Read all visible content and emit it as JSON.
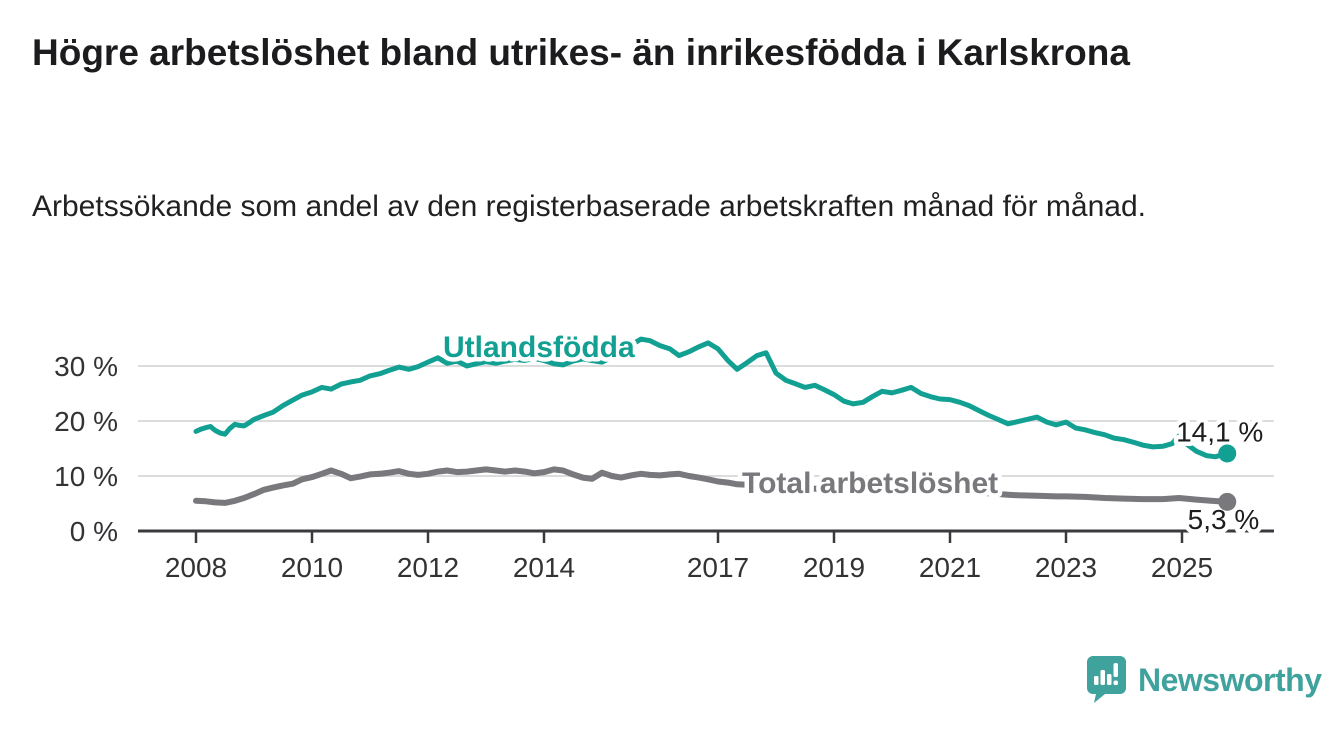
{
  "title": "Högre arbetslöshet bland utrikes- än inrikesfödda i Karlskrona",
  "subtitle": "Arbetssökande som andel av den registerbaserade arbetskraften månad för månad.",
  "chart_data": {
    "type": "line",
    "unit": "%",
    "grid": "horizontal",
    "x_axis": {
      "ticks": [
        2008,
        2010,
        2012,
        2014,
        2017,
        2019,
        2021,
        2023,
        2025
      ],
      "range": [
        2007.8,
        2026.3
      ]
    },
    "y_axis": {
      "ticks": [
        0,
        10,
        20,
        30
      ],
      "tick_labels": [
        "0 %",
        "10 %",
        "20 %",
        "30 %"
      ],
      "range": [
        0,
        37
      ]
    },
    "series": [
      {
        "name": "Utlandsfödda",
        "color": "#12A093",
        "end_label": "14,1 %",
        "points": [
          [
            2008.0,
            18.1
          ],
          [
            2008.08,
            18.5
          ],
          [
            2008.17,
            18.8
          ],
          [
            2008.25,
            19.0
          ],
          [
            2008.33,
            18.3
          ],
          [
            2008.42,
            17.8
          ],
          [
            2008.5,
            17.6
          ],
          [
            2008.58,
            18.6
          ],
          [
            2008.67,
            19.4
          ],
          [
            2008.75,
            19.2
          ],
          [
            2008.83,
            19.1
          ],
          [
            2008.92,
            19.7
          ],
          [
            2009.0,
            20.3
          ],
          [
            2009.17,
            21.0
          ],
          [
            2009.33,
            21.6
          ],
          [
            2009.5,
            22.8
          ],
          [
            2009.67,
            23.8
          ],
          [
            2009.83,
            24.7
          ],
          [
            2010.0,
            25.3
          ],
          [
            2010.17,
            26.1
          ],
          [
            2010.33,
            25.8
          ],
          [
            2010.5,
            26.7
          ],
          [
            2010.67,
            27.1
          ],
          [
            2010.83,
            27.4
          ],
          [
            2011.0,
            28.2
          ],
          [
            2011.17,
            28.6
          ],
          [
            2011.33,
            29.2
          ],
          [
            2011.5,
            29.8
          ],
          [
            2011.67,
            29.4
          ],
          [
            2011.83,
            29.9
          ],
          [
            2012.0,
            30.7
          ],
          [
            2012.17,
            31.5
          ],
          [
            2012.33,
            30.5
          ],
          [
            2012.5,
            30.9
          ],
          [
            2012.67,
            30.0
          ],
          [
            2012.83,
            30.4
          ],
          [
            2013.0,
            30.8
          ],
          [
            2013.17,
            30.5
          ],
          [
            2013.33,
            30.9
          ],
          [
            2013.5,
            31.2
          ],
          [
            2013.67,
            31.0
          ],
          [
            2013.83,
            31.4
          ],
          [
            2014.0,
            31.0
          ],
          [
            2014.17,
            30.4
          ],
          [
            2014.33,
            30.2
          ],
          [
            2014.5,
            30.9
          ],
          [
            2014.67,
            31.3
          ],
          [
            2014.83,
            31.0
          ],
          [
            2015.0,
            30.7
          ],
          [
            2015.17,
            31.6
          ],
          [
            2015.33,
            32.6
          ],
          [
            2015.5,
            33.8
          ],
          [
            2015.67,
            34.9
          ],
          [
            2015.83,
            34.6
          ],
          [
            2016.0,
            33.7
          ],
          [
            2016.17,
            33.1
          ],
          [
            2016.33,
            31.9
          ],
          [
            2016.5,
            32.6
          ],
          [
            2016.67,
            33.5
          ],
          [
            2016.83,
            34.2
          ],
          [
            2017.0,
            33.1
          ],
          [
            2017.17,
            31.0
          ],
          [
            2017.33,
            29.4
          ],
          [
            2017.5,
            30.6
          ],
          [
            2017.67,
            31.9
          ],
          [
            2017.83,
            32.4
          ],
          [
            2018.0,
            28.7
          ],
          [
            2018.17,
            27.4
          ],
          [
            2018.33,
            26.8
          ],
          [
            2018.5,
            26.1
          ],
          [
            2018.67,
            26.5
          ],
          [
            2018.83,
            25.7
          ],
          [
            2019.0,
            24.8
          ],
          [
            2019.17,
            23.6
          ],
          [
            2019.33,
            23.1
          ],
          [
            2019.5,
            23.4
          ],
          [
            2019.67,
            24.5
          ],
          [
            2019.83,
            25.4
          ],
          [
            2020.0,
            25.1
          ],
          [
            2020.17,
            25.6
          ],
          [
            2020.33,
            26.1
          ],
          [
            2020.5,
            25.0
          ],
          [
            2020.67,
            24.4
          ],
          [
            2020.83,
            24.0
          ],
          [
            2021.0,
            23.9
          ],
          [
            2021.17,
            23.4
          ],
          [
            2021.33,
            22.8
          ],
          [
            2021.5,
            21.9
          ],
          [
            2021.67,
            21.0
          ],
          [
            2021.83,
            20.3
          ],
          [
            2022.0,
            19.5
          ],
          [
            2022.17,
            19.9
          ],
          [
            2022.33,
            20.3
          ],
          [
            2022.5,
            20.7
          ],
          [
            2022.67,
            19.8
          ],
          [
            2022.83,
            19.3
          ],
          [
            2023.0,
            19.8
          ],
          [
            2023.17,
            18.7
          ],
          [
            2023.33,
            18.4
          ],
          [
            2023.5,
            17.9
          ],
          [
            2023.67,
            17.5
          ],
          [
            2023.83,
            16.9
          ],
          [
            2024.0,
            16.6
          ],
          [
            2024.17,
            16.1
          ],
          [
            2024.33,
            15.6
          ],
          [
            2024.5,
            15.3
          ],
          [
            2024.67,
            15.4
          ],
          [
            2024.83,
            15.9
          ],
          [
            2024.95,
            17.3
          ],
          [
            2025.08,
            15.8
          ],
          [
            2025.25,
            14.5
          ],
          [
            2025.42,
            13.7
          ],
          [
            2025.58,
            13.5
          ],
          [
            2025.67,
            13.8
          ],
          [
            2025.78,
            14.1
          ]
        ]
      },
      {
        "name": "Total arbetslöshet",
        "color": "#78787D",
        "end_label": "5,3 %",
        "points": [
          [
            2008.0,
            5.5
          ],
          [
            2008.17,
            5.4
          ],
          [
            2008.33,
            5.2
          ],
          [
            2008.5,
            5.1
          ],
          [
            2008.67,
            5.5
          ],
          [
            2008.83,
            6.0
          ],
          [
            2009.0,
            6.7
          ],
          [
            2009.17,
            7.5
          ],
          [
            2009.33,
            7.9
          ],
          [
            2009.5,
            8.3
          ],
          [
            2009.67,
            8.6
          ],
          [
            2009.83,
            9.4
          ],
          [
            2010.0,
            9.8
          ],
          [
            2010.17,
            10.4
          ],
          [
            2010.33,
            11.0
          ],
          [
            2010.5,
            10.4
          ],
          [
            2010.67,
            9.6
          ],
          [
            2010.83,
            9.9
          ],
          [
            2011.0,
            10.3
          ],
          [
            2011.17,
            10.4
          ],
          [
            2011.33,
            10.6
          ],
          [
            2011.5,
            10.9
          ],
          [
            2011.67,
            10.4
          ],
          [
            2011.83,
            10.2
          ],
          [
            2012.0,
            10.4
          ],
          [
            2012.17,
            10.8
          ],
          [
            2012.33,
            11.0
          ],
          [
            2012.5,
            10.7
          ],
          [
            2012.67,
            10.8
          ],
          [
            2012.83,
            11.0
          ],
          [
            2013.0,
            11.2
          ],
          [
            2013.17,
            11.0
          ],
          [
            2013.33,
            10.8
          ],
          [
            2013.5,
            11.0
          ],
          [
            2013.67,
            10.8
          ],
          [
            2013.83,
            10.5
          ],
          [
            2014.0,
            10.7
          ],
          [
            2014.17,
            11.2
          ],
          [
            2014.33,
            11.0
          ],
          [
            2014.5,
            10.3
          ],
          [
            2014.67,
            9.7
          ],
          [
            2014.83,
            9.5
          ],
          [
            2015.0,
            10.6
          ],
          [
            2015.17,
            10.0
          ],
          [
            2015.33,
            9.7
          ],
          [
            2015.5,
            10.1
          ],
          [
            2015.67,
            10.4
          ],
          [
            2015.83,
            10.2
          ],
          [
            2016.0,
            10.1
          ],
          [
            2016.17,
            10.3
          ],
          [
            2016.33,
            10.4
          ],
          [
            2016.5,
            10.0
          ],
          [
            2016.67,
            9.7
          ],
          [
            2016.83,
            9.4
          ],
          [
            2017.0,
            9.0
          ],
          [
            2017.17,
            8.8
          ],
          [
            2017.33,
            8.5
          ],
          [
            2017.5,
            8.4
          ],
          [
            2017.75,
            8.3
          ],
          [
            2018.0,
            8.1
          ],
          [
            2018.5,
            7.8
          ],
          [
            2019.0,
            7.5
          ],
          [
            2019.5,
            7.3
          ],
          [
            2020.0,
            7.5
          ],
          [
            2020.4,
            7.9
          ],
          [
            2021.0,
            7.3
          ],
          [
            2021.5,
            7.0
          ],
          [
            2022.0,
            6.6
          ],
          [
            2022.17,
            6.5
          ],
          [
            2022.5,
            6.4
          ],
          [
            2022.83,
            6.3
          ],
          [
            2023.0,
            6.3
          ],
          [
            2023.33,
            6.2
          ],
          [
            2023.67,
            6.0
          ],
          [
            2024.0,
            5.9
          ],
          [
            2024.33,
            5.8
          ],
          [
            2024.67,
            5.8
          ],
          [
            2024.95,
            6.0
          ],
          [
            2025.25,
            5.7
          ],
          [
            2025.5,
            5.5
          ],
          [
            2025.78,
            5.3
          ]
        ]
      }
    ]
  },
  "logo": {
    "name": "Newsworthy",
    "color": "#3FA29D",
    "icon": "newsworthy-speech-bubble-chart-icon"
  }
}
